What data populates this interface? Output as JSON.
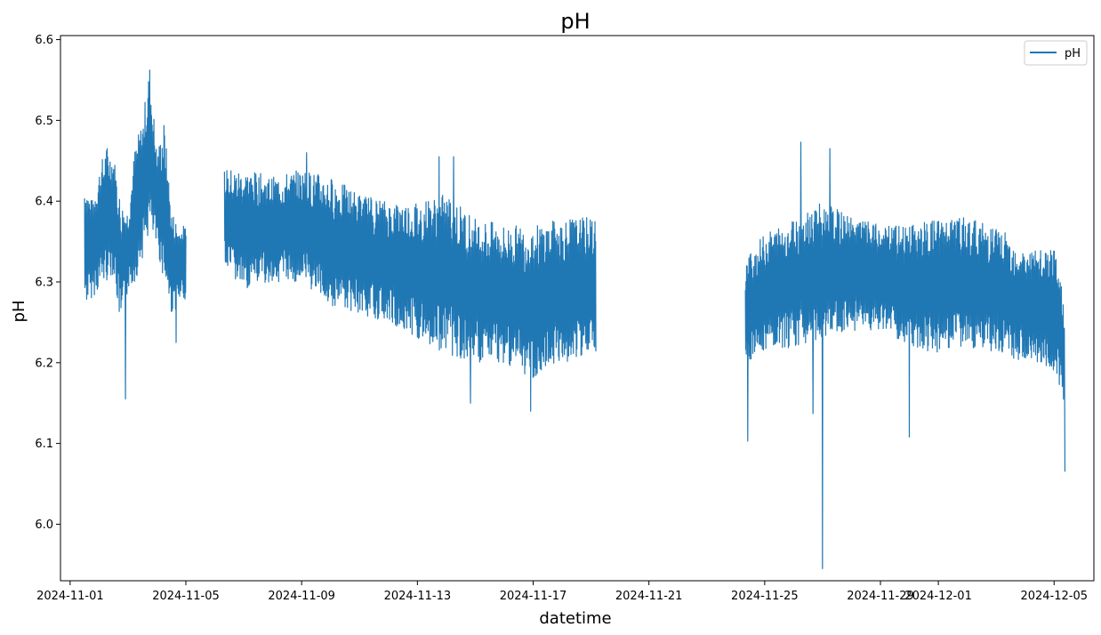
{
  "chart_data": {
    "type": "line",
    "title": "pH",
    "xlabel": "datetime",
    "ylabel": "pH",
    "x_axis": "date",
    "xlim": [
      "2024-10-31T16:00",
      "2024-12-06T09:00"
    ],
    "ylim": [
      5.93,
      6.605
    ],
    "x_ticks": [
      "2024-11-01",
      "2024-11-05",
      "2024-11-09",
      "2024-11-13",
      "2024-11-17",
      "2024-11-21",
      "2024-11-25",
      "2024-11-29",
      "2024-12-01",
      "2024-12-05"
    ],
    "y_ticks": [
      "6.0",
      "6.1",
      "6.2",
      "6.3",
      "6.4",
      "6.5",
      "6.6"
    ],
    "grid": false,
    "legend_position": "top-right",
    "series": [
      {
        "name": "pH",
        "color": "#1f77b4",
        "segments": [
          {
            "start": "2024-11-01T12:00",
            "end": "2024-11-05T00:00",
            "envelope": [
              {
                "x": "2024-11-01T12:00",
                "low": 6.27,
                "high": 6.43
              },
              {
                "x": "2024-11-01T18:00",
                "low": 6.28,
                "high": 6.4
              },
              {
                "x": "2024-11-02T00:00",
                "low": 6.29,
                "high": 6.44
              },
              {
                "x": "2024-11-02T06:00",
                "low": 6.3,
                "high": 6.47
              },
              {
                "x": "2024-11-02T12:00",
                "low": 6.31,
                "high": 6.46
              },
              {
                "x": "2024-11-02T18:00",
                "low": 6.24,
                "high": 6.4
              },
              {
                "x": "2024-11-03T00:00",
                "low": 6.29,
                "high": 6.39
              },
              {
                "x": "2024-11-03T06:00",
                "low": 6.3,
                "high": 6.47
              },
              {
                "x": "2024-11-03T12:00",
                "low": 6.33,
                "high": 6.5
              },
              {
                "x": "2024-11-03T18:00",
                "low": 6.36,
                "high": 6.57
              },
              {
                "x": "2024-11-04T00:00",
                "low": 6.34,
                "high": 6.46
              },
              {
                "x": "2024-11-04T06:00",
                "low": 6.3,
                "high": 6.5
              },
              {
                "x": "2024-11-04T12:00",
                "low": 6.26,
                "high": 6.39
              },
              {
                "x": "2024-11-04T18:00",
                "low": 6.27,
                "high": 6.37
              },
              {
                "x": "2024-11-05T00:00",
                "low": 6.28,
                "high": 6.37
              }
            ],
            "spikes": [
              {
                "x": "2024-11-02T22:00",
                "value": 6.155
              },
              {
                "x": "2024-11-04T16:00",
                "value": 6.225
              }
            ]
          },
          {
            "start": "2024-11-06T08:00",
            "end": "2024-11-19T04:00",
            "envelope": [
              {
                "x": "2024-11-06T08:00",
                "low": 6.31,
                "high": 6.44
              },
              {
                "x": "2024-11-07T00:00",
                "low": 6.29,
                "high": 6.44
              },
              {
                "x": "2024-11-08T00:00",
                "low": 6.3,
                "high": 6.43
              },
              {
                "x": "2024-11-09T00:00",
                "low": 6.3,
                "high": 6.44
              },
              {
                "x": "2024-11-10T00:00",
                "low": 6.27,
                "high": 6.43
              },
              {
                "x": "2024-11-11T00:00",
                "low": 6.26,
                "high": 6.41
              },
              {
                "x": "2024-11-12T00:00",
                "low": 6.25,
                "high": 6.4
              },
              {
                "x": "2024-11-13T00:00",
                "low": 6.23,
                "high": 6.4
              },
              {
                "x": "2024-11-14T00:00",
                "low": 6.21,
                "high": 6.41
              },
              {
                "x": "2024-11-15T00:00",
                "low": 6.2,
                "high": 6.38
              },
              {
                "x": "2024-11-16T00:00",
                "low": 6.2,
                "high": 6.37
              },
              {
                "x": "2024-11-17T00:00",
                "low": 6.18,
                "high": 6.37
              },
              {
                "x": "2024-11-18T00:00",
                "low": 6.2,
                "high": 6.38
              },
              {
                "x": "2024-11-19T04:00",
                "low": 6.21,
                "high": 6.38
              }
            ],
            "spikes": [
              {
                "x": "2024-11-09T04:00",
                "value": 6.46
              },
              {
                "x": "2024-11-14T06:00",
                "value": 6.455
              },
              {
                "x": "2024-11-13T18:00",
                "value": 6.455
              },
              {
                "x": "2024-11-14T20:00",
                "value": 6.15
              },
              {
                "x": "2024-11-16T22:00",
                "value": 6.14
              }
            ]
          },
          {
            "start": "2024-11-24T08:00",
            "end": "2024-12-05T09:00",
            "envelope": [
              {
                "x": "2024-11-24T08:00",
                "low": 6.2,
                "high": 6.33
              },
              {
                "x": "2024-11-25T00:00",
                "low": 6.21,
                "high": 6.36
              },
              {
                "x": "2024-11-26T00:00",
                "low": 6.22,
                "high": 6.38
              },
              {
                "x": "2024-11-27T00:00",
                "low": 6.23,
                "high": 6.4
              },
              {
                "x": "2024-11-28T00:00",
                "low": 6.24,
                "high": 6.38
              },
              {
                "x": "2024-11-29T00:00",
                "low": 6.24,
                "high": 6.37
              },
              {
                "x": "2024-11-30T00:00",
                "low": 6.22,
                "high": 6.37
              },
              {
                "x": "2024-12-01T00:00",
                "low": 6.21,
                "high": 6.38
              },
              {
                "x": "2024-12-02T00:00",
                "low": 6.22,
                "high": 6.38
              },
              {
                "x": "2024-12-03T00:00",
                "low": 6.21,
                "high": 6.37
              },
              {
                "x": "2024-12-04T00:00",
                "low": 6.2,
                "high": 6.34
              },
              {
                "x": "2024-12-05T00:00",
                "low": 6.19,
                "high": 6.34
              },
              {
                "x": "2024-12-05T09:00",
                "low": 6.14,
                "high": 6.28
              }
            ],
            "spikes": [
              {
                "x": "2024-11-24T10:00",
                "value": 6.103
              },
              {
                "x": "2024-11-26T06:00",
                "value": 6.473
              },
              {
                "x": "2024-11-26T16:00",
                "value": 6.137
              },
              {
                "x": "2024-11-27T00:00",
                "value": 5.945
              },
              {
                "x": "2024-11-27T06:00",
                "value": 6.465
              },
              {
                "x": "2024-11-30T00:00",
                "value": 6.108
              },
              {
                "x": "2024-12-05T09:00",
                "value": 6.065
              }
            ]
          }
        ]
      }
    ]
  }
}
